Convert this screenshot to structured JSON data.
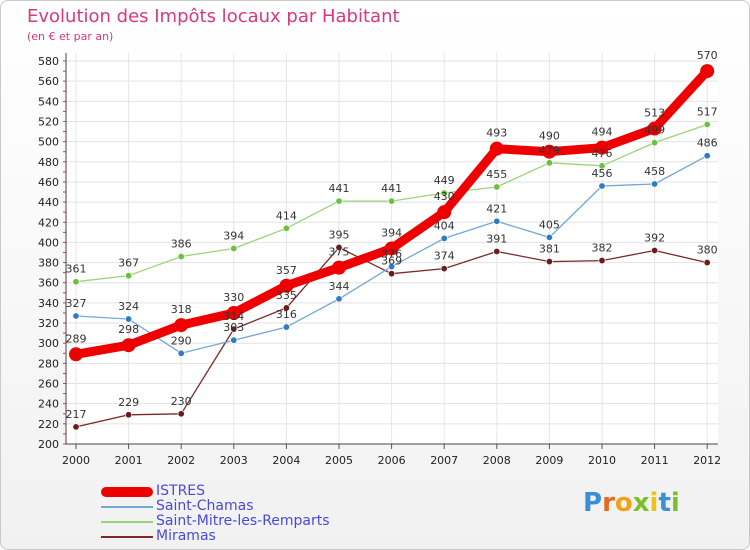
{
  "title": "Evolution des Impôts locaux par Habitant",
  "subtitle": "(en € et par an)",
  "logo": {
    "text": "Proxiti",
    "letters": [
      {
        "ch": "P",
        "color": "#3a8fd8"
      },
      {
        "ch": "r",
        "color": "#e46a1e"
      },
      {
        "ch": "o",
        "color": "#f2a11a"
      },
      {
        "ch": "x",
        "color": "#7cbf2a"
      },
      {
        "ch": "i",
        "color": "#e9c316"
      },
      {
        "ch": "t",
        "color": "#3a8fd8"
      },
      {
        "ch": "i",
        "color": "#7cbf2a"
      }
    ]
  },
  "chart_data": {
    "type": "line",
    "title": "Evolution des Impôts locaux par Habitant",
    "subtitle": "(en € et par an)",
    "xlabel": "",
    "ylabel": "",
    "ylim": [
      200,
      580
    ],
    "y_ticks": [
      200,
      220,
      240,
      260,
      280,
      300,
      320,
      340,
      360,
      380,
      400,
      420,
      440,
      460,
      480,
      500,
      520,
      540,
      560,
      580
    ],
    "grid": true,
    "legend_position": "bottom-left",
    "categories": [
      "2000",
      "2001",
      "2002",
      "2003",
      "2004",
      "2005",
      "2006",
      "2007",
      "2008",
      "2009",
      "2010",
      "2011",
      "2012"
    ],
    "series": [
      {
        "name": "ISTRES",
        "color": "#ee0000",
        "marker_color": "#ee0000",
        "emphasis": true,
        "values": [
          289,
          298,
          318,
          330,
          357,
          375,
          394,
          430,
          493,
          490,
          494,
          513,
          570
        ]
      },
      {
        "name": "Saint-Chamas",
        "color": "#74a6d6",
        "marker_color": "#2f7cc2",
        "values": [
          327,
          324,
          290,
          303,
          316,
          344,
          376,
          404,
          421,
          405,
          456,
          458,
          486
        ]
      },
      {
        "name": "Saint-Mitre-les-Remparts",
        "color": "#9ad47a",
        "marker_color": "#6cc13a",
        "values": [
          361,
          367,
          386,
          394,
          414,
          441,
          441,
          449,
          455,
          479,
          476,
          499,
          517
        ]
      },
      {
        "name": "Miramas",
        "color": "#7a2a2a",
        "marker_color": "#6b1c1c",
        "values": [
          217,
          229,
          230,
          314,
          335,
          395,
          369,
          374,
          391,
          381,
          382,
          392,
          380
        ]
      }
    ]
  }
}
